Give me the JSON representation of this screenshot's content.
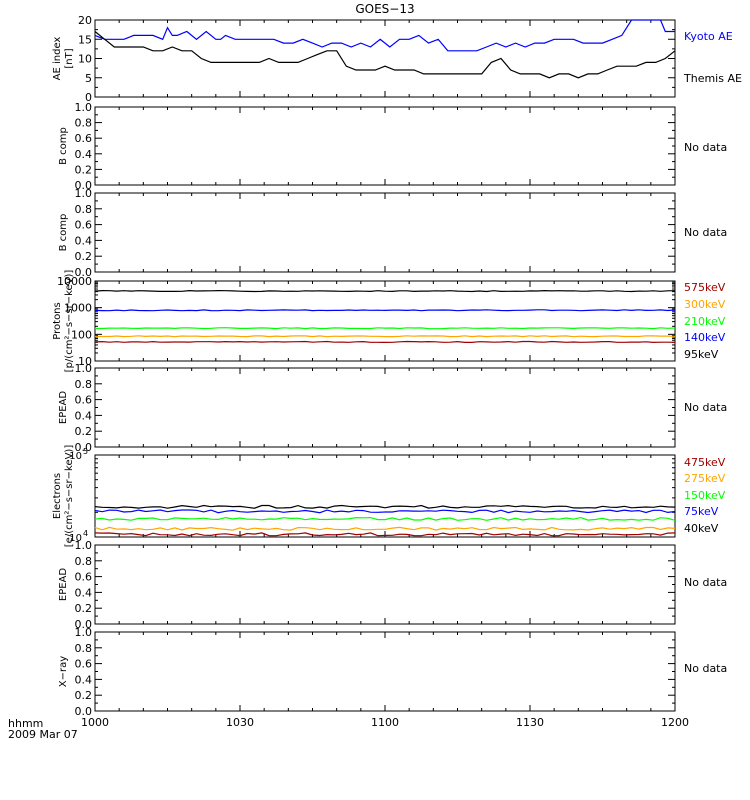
{
  "title": "GOES−13",
  "time_label_line1": "hhmm",
  "time_label_line2": "2009 Mar 07",
  "x_ticks": [
    "1000",
    "1030",
    "1100",
    "1130",
    "1200"
  ],
  "no_data_text": "No data",
  "colors": {
    "black": "#000000",
    "blue": "#0000ff",
    "green": "#00ff00",
    "orange": "#ffa500",
    "maroon": "#a00000"
  },
  "chart_data": [
    {
      "type": "line",
      "ylabel": [
        "AE index",
        "[nT]"
      ],
      "ylim": [
        0,
        20
      ],
      "yticks": [
        "0",
        "5",
        "10",
        "15",
        "20"
      ],
      "x_range_minutes": [
        0,
        120
      ],
      "series": [
        {
          "name": "Kyoto AE",
          "color": "blue",
          "x": [
            0,
            2,
            4,
            6,
            8,
            10,
            12,
            14,
            15,
            16,
            17,
            19,
            21,
            23,
            25,
            26,
            27,
            29,
            31,
            33,
            35,
            37,
            39,
            41,
            43,
            45,
            47,
            49,
            51,
            53,
            55,
            57,
            59,
            61,
            63,
            65,
            67,
            69,
            71,
            73,
            75,
            77,
            79,
            81,
            83,
            85,
            87,
            89,
            91,
            93,
            95,
            97,
            99,
            101,
            103,
            105,
            107,
            109,
            111,
            113,
            115,
            117,
            118,
            119,
            120
          ],
          "values": [
            16,
            15,
            15,
            15,
            16,
            16,
            16,
            15,
            18,
            16,
            16,
            17,
            15,
            17,
            15,
            15,
            16,
            15,
            15,
            15,
            15,
            15,
            14,
            14,
            15,
            14,
            13,
            14,
            14,
            13,
            14,
            13,
            15,
            13,
            15,
            15,
            16,
            14,
            15,
            12,
            12,
            12,
            12,
            13,
            14,
            13,
            14,
            13,
            14,
            14,
            15,
            15,
            15,
            14,
            14,
            14,
            15,
            16,
            20,
            21,
            21,
            20,
            17,
            17,
            17
          ]
        },
        {
          "name": "Themis AE",
          "color": "black",
          "x": [
            0,
            2,
            4,
            6,
            8,
            10,
            12,
            14,
            16,
            18,
            20,
            22,
            24,
            26,
            28,
            30,
            32,
            34,
            36,
            38,
            40,
            42,
            44,
            46,
            48,
            50,
            52,
            54,
            56,
            58,
            60,
            62,
            64,
            66,
            68,
            70,
            72,
            74,
            76,
            78,
            80,
            82,
            84,
            86,
            88,
            90,
            92,
            94,
            96,
            98,
            100,
            102,
            104,
            106,
            108,
            110,
            112,
            114,
            116,
            118,
            120
          ],
          "values": [
            17,
            15,
            13,
            13,
            13,
            13,
            12,
            12,
            13,
            12,
            12,
            10,
            9,
            9,
            9,
            9,
            9,
            9,
            10,
            9,
            9,
            9,
            10,
            11,
            12,
            12,
            8,
            7,
            7,
            7,
            8,
            7,
            7,
            7,
            6,
            6,
            6,
            6,
            6,
            6,
            6,
            9,
            10,
            7,
            6,
            6,
            6,
            5,
            6,
            6,
            5,
            6,
            6,
            7,
            8,
            8,
            8,
            9,
            9,
            10,
            12
          ]
        }
      ]
    },
    {
      "type": "line",
      "ylabel": [
        "B comp"
      ],
      "ylim": [
        0,
        1
      ],
      "yticks": [
        "0.0",
        "0.2",
        "0.4",
        "0.6",
        "0.8",
        "1.0"
      ],
      "series": [],
      "status": "No data"
    },
    {
      "type": "line",
      "ylabel": [
        "B comp"
      ],
      "ylim": [
        0,
        1
      ],
      "yticks": [
        "0.0",
        "0.2",
        "0.4",
        "0.6",
        "0.8",
        "1.0"
      ],
      "series": [],
      "status": "No data"
    },
    {
      "type": "line",
      "ylabel": [
        "Protons",
        "[p/(cm²−s−sr−keV)]"
      ],
      "yscale": "log",
      "ylim": [
        10,
        10000
      ],
      "yticks": [
        "10",
        "100",
        "1000",
        "10000"
      ],
      "series": [
        {
          "name": "575keV",
          "color": "maroon",
          "level": 52
        },
        {
          "name": "300keV",
          "color": "orange",
          "level": 85
        },
        {
          "name": "210keV",
          "color": "green",
          "level": 170
        },
        {
          "name": "140keV",
          "color": "blue",
          "level": 800
        },
        {
          "name": "95keV",
          "color": "black",
          "level": 4200
        }
      ]
    },
    {
      "type": "line",
      "ylabel": [
        "EPEAD"
      ],
      "ylim": [
        0,
        1
      ],
      "yticks": [
        "0.0",
        "0.2",
        "0.4",
        "0.6",
        "0.8",
        "1.0"
      ],
      "series": [],
      "status": "No data"
    },
    {
      "type": "line",
      "ylabel": [
        "Electrons",
        "[e/(cm²−s−sr−keV)]"
      ],
      "yscale": "log",
      "ylim": [
        10000,
        100000
      ],
      "ytick_base": "10",
      "ytick_exponents": [
        "4",
        "5"
      ],
      "series": [
        {
          "name": "475keV",
          "color": "maroon",
          "level": 10800
        },
        {
          "name": "275keV",
          "color": "orange",
          "level": 12600
        },
        {
          "name": "150keV",
          "color": "green",
          "level": 16600
        },
        {
          "name": "75keV",
          "color": "blue",
          "level": 20600
        },
        {
          "name": "40keV",
          "color": "black",
          "level": 23300
        }
      ]
    },
    {
      "type": "line",
      "ylabel": [
        "EPEAD"
      ],
      "ylim": [
        0,
        1
      ],
      "yticks": [
        "0.0",
        "0.2",
        "0.4",
        "0.6",
        "0.8",
        "1.0"
      ],
      "series": [],
      "status": "No data"
    },
    {
      "type": "line",
      "ylabel": [
        "X−ray"
      ],
      "ylim": [
        0,
        1
      ],
      "yticks": [
        "0.0",
        "0.2",
        "0.4",
        "0.6",
        "0.8",
        "1.0"
      ],
      "series": [],
      "status": "No data"
    }
  ]
}
